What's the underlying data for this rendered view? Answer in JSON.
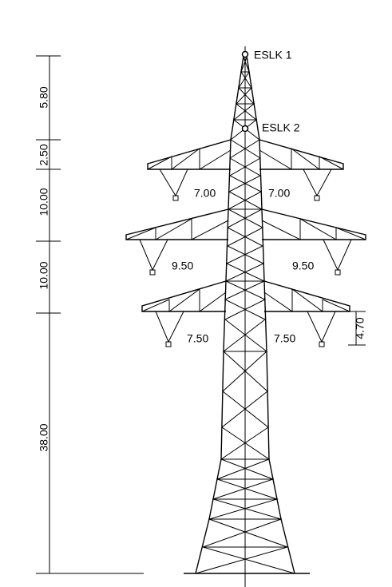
{
  "earth_wires": [
    "ESLK 1",
    "ESLK 2"
  ],
  "height_dimensions": [
    "5.80",
    "2.50",
    "10.00",
    "10.00",
    "38.00"
  ],
  "arm_spans": {
    "left": [
      "7.00",
      "9.50",
      "7.50"
    ],
    "right": [
      "7.00",
      "9.50",
      "7.50"
    ]
  },
  "insulator_length": "4.70"
}
